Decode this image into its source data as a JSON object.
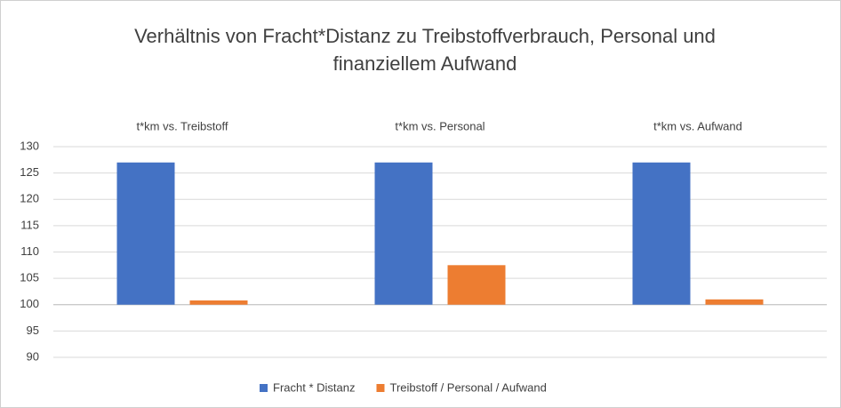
{
  "chart_data": {
    "type": "bar",
    "title": "Verhältnis von Fracht*Distanz zu Treibstoffverbrauch, Personal und finanziellem Aufwand",
    "categories": [
      "t*km vs. Treibstoff",
      "t*km vs. Personal",
      "t*km vs. Aufwand"
    ],
    "series": [
      {
        "name": "Fracht * Distanz",
        "color": "#4472c4",
        "values": [
          127,
          127,
          127
        ]
      },
      {
        "name": "Treibstoff / Personal / Aufwand",
        "color": "#ed7d31",
        "values": [
          100.8,
          107.5,
          101.0
        ]
      }
    ],
    "ylim": [
      90,
      130
    ],
    "yticks": [
      90,
      95,
      100,
      105,
      110,
      115,
      120,
      125,
      130
    ],
    "x_axis_crosses": 100,
    "grid": true,
    "legend": "bottom"
  }
}
